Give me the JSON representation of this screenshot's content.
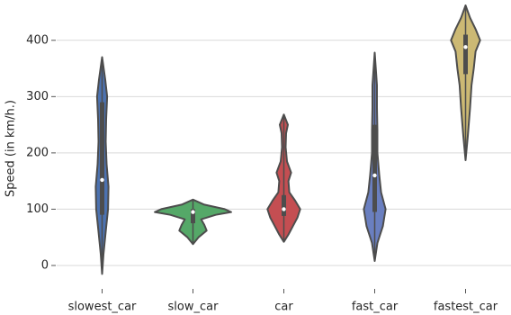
{
  "chart_data": {
    "type": "violin",
    "ylabel": "Speed (in km/h.)",
    "categories": [
      "slowest_car",
      "slow_car",
      "car",
      "fast_car",
      "fastest_car"
    ],
    "ylim": [
      -40,
      470
    ],
    "yticks": [
      0,
      100,
      200,
      300,
      400
    ],
    "grid": true,
    "violins": [
      {
        "color": "#4c72b0",
        "min": -15,
        "q1": 90,
        "median": 152,
        "q3": 290,
        "max": 370,
        "density": {
          "y": [
            -15,
            20,
            60,
            100,
            140,
            180,
            220,
            260,
            300,
            330,
            370
          ],
          "width": [
            0,
            0.03,
            0.08,
            0.13,
            0.14,
            0.1,
            0.08,
            0.09,
            0.11,
            0.07,
            0
          ]
        }
      },
      {
        "color": "#55a868",
        "min": 38,
        "q1": 75,
        "median": 95,
        "q3": 100,
        "max": 117,
        "density": {
          "y": [
            38,
            50,
            62,
            72,
            82,
            90,
            95,
            100,
            108,
            117
          ],
          "width": [
            0,
            0.12,
            0.3,
            0.25,
            0.18,
            0.5,
            0.84,
            0.7,
            0.25,
            0
          ]
        }
      },
      {
        "color": "#c44e52",
        "min": 42,
        "q1": 88,
        "median": 100,
        "q3": 125,
        "max": 268,
        "density": {
          "y": [
            42,
            55,
            70,
            85,
            100,
            115,
            130,
            150,
            165,
            185,
            210,
            235,
            250,
            268
          ],
          "width": [
            0,
            0.1,
            0.2,
            0.3,
            0.36,
            0.25,
            0.12,
            0.1,
            0.16,
            0.07,
            0.04,
            0.05,
            0.09,
            0
          ]
        }
      },
      {
        "color": "#6a7fc0",
        "min": 8,
        "q1": 95,
        "median": 160,
        "q3": 250,
        "max": 378,
        "density": {
          "y": [
            8,
            40,
            70,
            100,
            130,
            160,
            200,
            240,
            280,
            320,
            378
          ],
          "width": [
            0,
            0.06,
            0.18,
            0.24,
            0.14,
            0.1,
            0.06,
            0.06,
            0.05,
            0.05,
            0
          ]
        }
      },
      {
        "color": "#ccb974",
        "min": 187,
        "q1": 340,
        "median": 388,
        "q3": 410,
        "max": 462,
        "density": {
          "y": [
            187,
            230,
            280,
            320,
            350,
            380,
            400,
            420,
            440,
            462
          ],
          "width": [
            0,
            0.05,
            0.1,
            0.13,
            0.18,
            0.22,
            0.32,
            0.22,
            0.1,
            0
          ]
        }
      }
    ]
  }
}
